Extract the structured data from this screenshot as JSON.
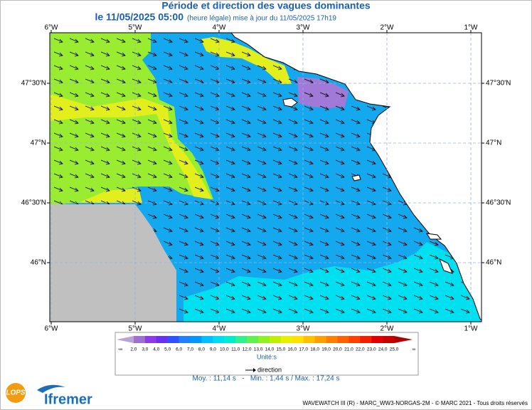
{
  "header": {
    "title": "Période et direction des vagues dominantes",
    "subtitle": "le 11/05/2025 05:00",
    "note": "(heure légale) mise à jour du 11/05/2025 17h19"
  },
  "map": {
    "lon_ticks": [
      {
        "value": -6,
        "label": "6°W"
      },
      {
        "value": -5,
        "label": "5°W"
      },
      {
        "value": -4,
        "label": "4°W"
      },
      {
        "value": -3,
        "label": "3°W"
      },
      {
        "value": -2,
        "label": "2°W"
      },
      {
        "value": -1,
        "label": "1°W"
      }
    ],
    "lat_ticks": [
      {
        "value": 47.5,
        "label": "47°30'N"
      },
      {
        "value": 47,
        "label": "47°N"
      },
      {
        "value": 46.5,
        "label": "46°30'N"
      },
      {
        "value": 46,
        "label": "46°N"
      }
    ]
  },
  "legend": {
    "labels": [
      "-∞",
      "2,0",
      "3,0",
      "4,0",
      "5,0",
      "6,0",
      "7,0",
      "8,0",
      "9,0",
      "10,0",
      "11,0",
      "12,0",
      "13,0",
      "14,0",
      "15,0",
      "16,0",
      "17,0",
      "18,0",
      "19,0",
      "20,0",
      "21,0",
      "22,0",
      "23,0",
      "24,0",
      "25,0",
      "∞"
    ],
    "colors": [
      "#b8a3d6",
      "#a070d0",
      "#8a3ce6",
      "#6a30f0",
      "#3050ff",
      "#2080ff",
      "#0098ff",
      "#00c0ff",
      "#00dcf0",
      "#00eccc",
      "#30f090",
      "#60f050",
      "#90f020",
      "#c0f000",
      "#e8f000",
      "#ffe000",
      "#ffc000",
      "#ffa000",
      "#ff8000",
      "#ff6000",
      "#ff4000",
      "#f02000",
      "#e00000",
      "#c80000",
      "#b00000"
    ],
    "unit": "Unité:s",
    "direction": "direction"
  },
  "stats": "Moy. : 11,14 s   -   Min. : 1,44 s / Max. : 17,24 s",
  "footer": "WAVEWATCH III (R) - MARC_WW3-NORGAS-2M - © MARC 2021 - Tous droits réservés",
  "logos": {
    "lops": "LOPS",
    "ifremer": "Ifremer"
  }
}
